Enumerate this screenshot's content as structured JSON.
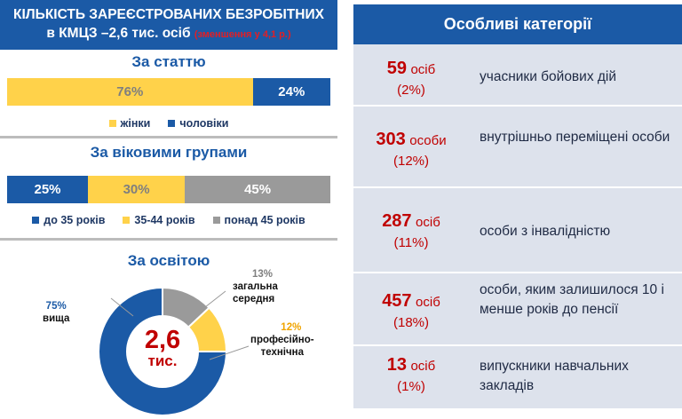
{
  "colors": {
    "blue": "#1b5aa6",
    "yellow": "#ffd24a",
    "gray": "#9a9a9a",
    "red": "#c00000",
    "panel": "#dde2ec"
  },
  "left": {
    "header_line1": "КІЛЬКІСТЬ ЗАРЕЄСТРОВАНИХ БЕЗРОБІТНИХ",
    "header_line2": "в КМЦЗ –2,6 тис. осіб",
    "header_note": "(зменшення у 4,1 р.)",
    "gender_title": "За статтю",
    "age_title": "За віковими групами",
    "edu_title": "За освітою"
  },
  "chart_data": [
    {
      "type": "bar",
      "title": "За статтю",
      "orientation": "stacked-horizontal",
      "series": [
        {
          "name": "жінки",
          "value": 76,
          "label": "76%",
          "color": "#ffd24a"
        },
        {
          "name": "чоловіки",
          "value": 24,
          "label": "24%",
          "color": "#1b5aa6"
        }
      ],
      "legend": "bottom"
    },
    {
      "type": "bar",
      "title": "За віковими групами",
      "orientation": "stacked-horizontal",
      "series": [
        {
          "name": "до 35 років",
          "value": 25,
          "label": "25%",
          "color": "#1b5aa6"
        },
        {
          "name": "35-44 років",
          "value": 30,
          "label": "30%",
          "color": "#ffd24a"
        },
        {
          "name": "понад 45 років",
          "value": 45,
          "label": "45%",
          "color": "#9a9a9a"
        }
      ],
      "legend": "bottom"
    },
    {
      "type": "pie",
      "title": "За освітою",
      "donut": true,
      "center_value": "2,6",
      "center_unit": "тис.",
      "slices": [
        {
          "name": "вища",
          "value": 75,
          "label": "75%",
          "color": "#1b5aa6"
        },
        {
          "name": "загальна середня",
          "name_line1": "загальна",
          "name_line2": "середня",
          "value": 13,
          "label": "13%",
          "color": "#9a9a9a"
        },
        {
          "name": "професійно-технічна",
          "name_line1": "професійно-",
          "name_line2": "технічна",
          "value": 12,
          "label": "12%",
          "color": "#ffd24a"
        }
      ]
    }
  ],
  "right": {
    "title": "Особливі категорії",
    "items": [
      {
        "num": "59",
        "unit": "осіб",
        "pct": "(2%)",
        "desc": "учасники бойових дій"
      },
      {
        "num": "303",
        "unit": "особи",
        "pct": "(12%)",
        "desc": "внутрішньо переміщені особи"
      },
      {
        "num": "287",
        "unit": "осіб",
        "pct": "(11%)",
        "desc": "особи з інвалідністю"
      },
      {
        "num": "457",
        "unit": "осіб",
        "pct": "(18%)",
        "desc": "особи, яким залишилося 10 і менше років до пенсії"
      },
      {
        "num": "13",
        "unit": "осіб",
        "pct": "(1%)",
        "desc": "випускники навчальних закладів"
      }
    ]
  }
}
